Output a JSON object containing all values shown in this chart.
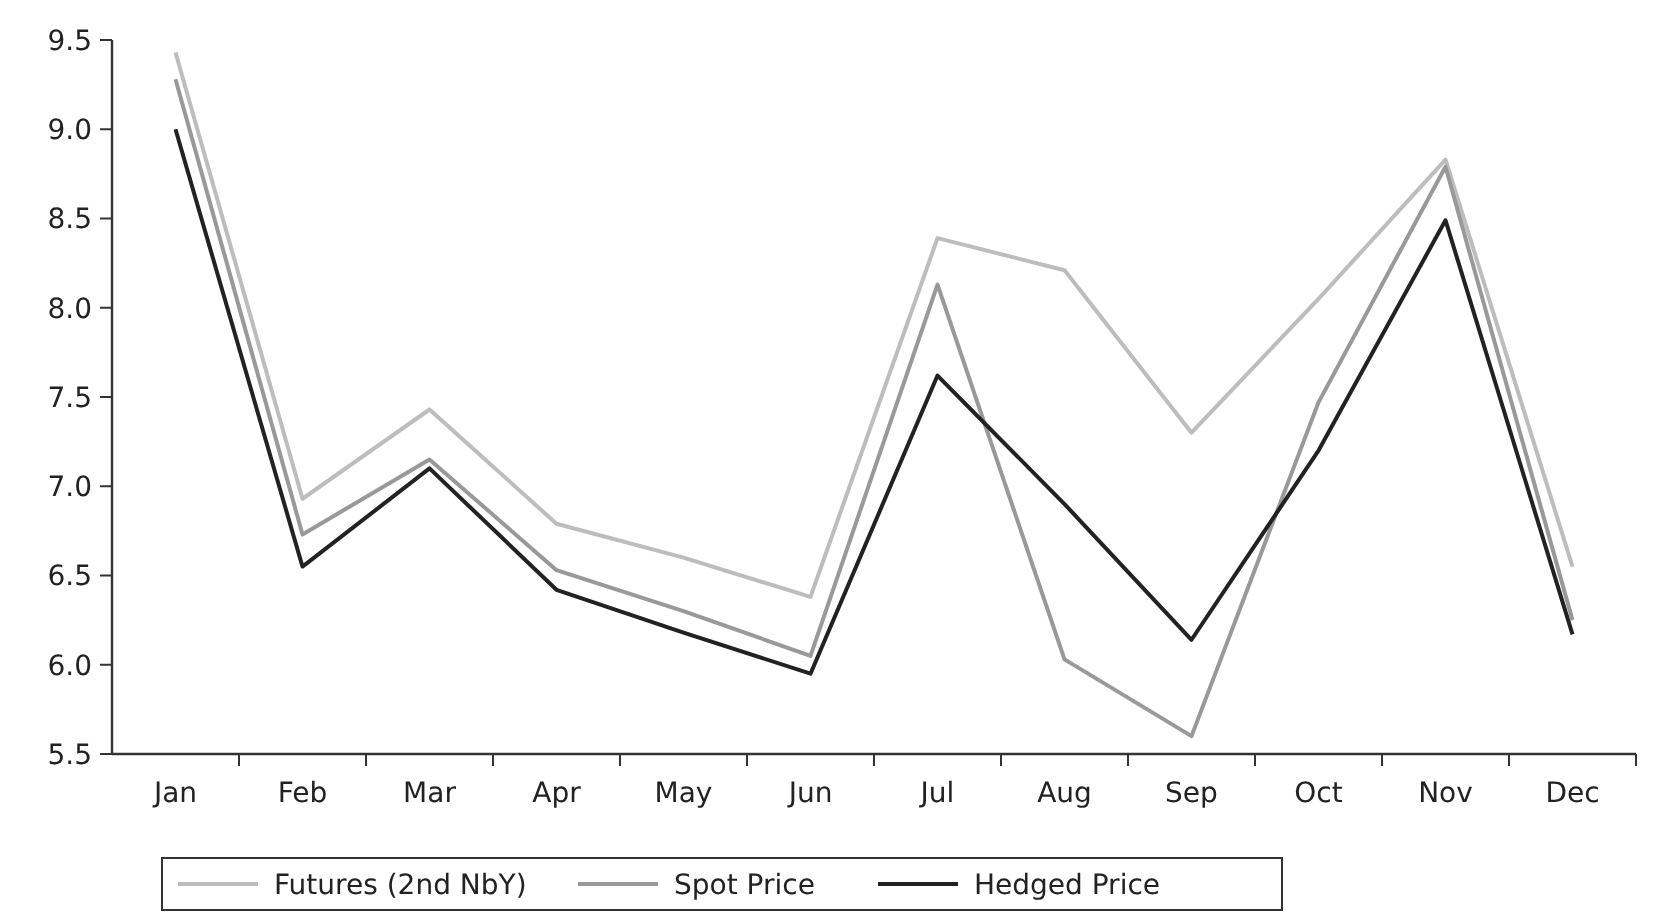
{
  "chart_data": {
    "type": "line",
    "categories": [
      "Jan",
      "Feb",
      "Mar",
      "Apr",
      "May",
      "Jun",
      "Jul",
      "Aug",
      "Sep",
      "Oct",
      "Nov",
      "Dec"
    ],
    "ylim": [
      5.5,
      9.5
    ],
    "yticks": [
      {
        "value": 5.5,
        "label": "5.5"
      },
      {
        "value": 6,
        "label": "6.0"
      },
      {
        "value": 6.5,
        "label": "6.5"
      },
      {
        "value": 7,
        "label": "7.0"
      },
      {
        "value": 7.5,
        "label": "7.5"
      },
      {
        "value": 8,
        "label": "8.0"
      },
      {
        "value": 8.5,
        "label": "8.5"
      },
      {
        "value": 9,
        "label": "9.0"
      },
      {
        "value": 9.5,
        "label": "9.5"
      }
    ],
    "legend": "bottom",
    "grid": false,
    "series": [
      {
        "name": "Futures (2nd NbY)",
        "color": "#bdbdbd",
        "values": [
          9.43,
          6.93,
          7.43,
          6.79,
          6.6,
          6.38,
          8.39,
          8.21,
          7.3,
          8.05,
          8.83,
          6.55
        ]
      },
      {
        "name": "Spot Price",
        "color": "#999999",
        "values": [
          9.28,
          6.73,
          7.15,
          6.53,
          6.3,
          6.05,
          8.13,
          6.03,
          5.6,
          7.47,
          8.79,
          6.25
        ]
      },
      {
        "name": "Hedged Price",
        "color": "#222222",
        "values": [
          9.0,
          6.55,
          7.1,
          6.42,
          6.18,
          5.95,
          7.62,
          6.9,
          6.14,
          7.2,
          8.49,
          6.17
        ]
      }
    ]
  }
}
